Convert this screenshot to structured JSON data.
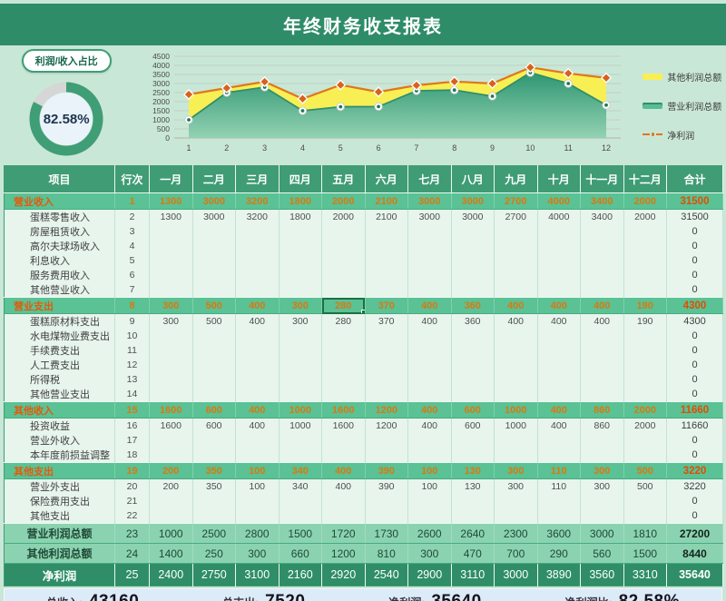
{
  "header": {
    "title": "年终财务收支报表"
  },
  "donut": {
    "label": "利润/收入占比",
    "value_text": "82.58%",
    "percent": 82.58,
    "ring_color": "#3f9e76",
    "track_color": "#d6d6d6",
    "inner_color": "#e9f3f9"
  },
  "chart_data": {
    "type": "area",
    "x": [
      "1",
      "2",
      "3",
      "4",
      "5",
      "6",
      "7",
      "8",
      "9",
      "10",
      "11",
      "12"
    ],
    "ylim": [
      0,
      4500
    ],
    "ytick_step": 500,
    "grid": true,
    "legend_position": "right",
    "series": [
      {
        "name": "营业利润总额",
        "type": "area",
        "color": "#2f8f6b",
        "values": [
          1000,
          2500,
          2800,
          1500,
          1720,
          1730,
          2600,
          2640,
          2300,
          3600,
          3000,
          1810
        ]
      },
      {
        "name": "其他利润总额",
        "type": "area-band",
        "color": "#f8ef55",
        "values": [
          1400,
          250,
          300,
          660,
          1200,
          810,
          300,
          470,
          700,
          290,
          560,
          1500
        ]
      },
      {
        "name": "净利润",
        "type": "line",
        "color": "#e0761c",
        "values": [
          2400,
          2750,
          3100,
          2160,
          2920,
          2540,
          2900,
          3110,
          3000,
          3890,
          3560,
          3310
        ]
      }
    ],
    "legend": [
      {
        "label": "其他利润总额",
        "swatch": "yellow-area"
      },
      {
        "label": "营业利润总额",
        "swatch": "green-area"
      },
      {
        "label": "净利润",
        "swatch": "orange-dashdot"
      }
    ]
  },
  "table": {
    "columns": [
      "项目",
      "行次",
      "一月",
      "二月",
      "三月",
      "四月",
      "五月",
      "六月",
      "七月",
      "八月",
      "九月",
      "十月",
      "十一月",
      "十二月",
      "合计"
    ],
    "selected_cell": {
      "row_no": "8",
      "month_index": 4,
      "value": "280"
    },
    "rows": [
      {
        "label": "营业收入",
        "no": "1",
        "type": "section",
        "values": [
          "1300",
          "3000",
          "3200",
          "1800",
          "2000",
          "2100",
          "3000",
          "3000",
          "2700",
          "4000",
          "3400",
          "2000"
        ],
        "total": "31500"
      },
      {
        "label": "蛋糕零售收入",
        "no": "2",
        "type": "detail",
        "values": [
          "1300",
          "3000",
          "3200",
          "1800",
          "2000",
          "2100",
          "3000",
          "3000",
          "2700",
          "4000",
          "3400",
          "2000"
        ],
        "total": "31500"
      },
      {
        "label": "房屋租赁收入",
        "no": "3",
        "type": "detail",
        "values": [
          "",
          "",
          "",
          "",
          "",
          "",
          "",
          "",
          "",
          "",
          "",
          ""
        ],
        "total": "0"
      },
      {
        "label": "高尔夫球场收入",
        "no": "4",
        "type": "detail",
        "values": [
          "",
          "",
          "",
          "",
          "",
          "",
          "",
          "",
          "",
          "",
          "",
          ""
        ],
        "total": "0"
      },
      {
        "label": "利息收入",
        "no": "5",
        "type": "detail",
        "values": [
          "",
          "",
          "",
          "",
          "",
          "",
          "",
          "",
          "",
          "",
          "",
          ""
        ],
        "total": "0"
      },
      {
        "label": "服务费用收入",
        "no": "6",
        "type": "detail",
        "values": [
          "",
          "",
          "",
          "",
          "",
          "",
          "",
          "",
          "",
          "",
          "",
          ""
        ],
        "total": "0"
      },
      {
        "label": "其他营业收入",
        "no": "7",
        "type": "detail",
        "values": [
          "",
          "",
          "",
          "",
          "",
          "",
          "",
          "",
          "",
          "",
          "",
          ""
        ],
        "total": "0"
      },
      {
        "label": "营业支出",
        "no": "8",
        "type": "section",
        "values": [
          "300",
          "500",
          "400",
          "300",
          "280",
          "370",
          "400",
          "360",
          "400",
          "400",
          "400",
          "190"
        ],
        "total": "4300"
      },
      {
        "label": "蛋糕原材料支出",
        "no": "9",
        "type": "detail",
        "values": [
          "300",
          "500",
          "400",
          "300",
          "280",
          "370",
          "400",
          "360",
          "400",
          "400",
          "400",
          "190"
        ],
        "total": "4300"
      },
      {
        "label": "水电煤物业费支出",
        "no": "10",
        "type": "detail",
        "values": [
          "",
          "",
          "",
          "",
          "",
          "",
          "",
          "",
          "",
          "",
          "",
          ""
        ],
        "total": "0"
      },
      {
        "label": "手续费支出",
        "no": "11",
        "type": "detail",
        "values": [
          "",
          "",
          "",
          "",
          "",
          "",
          "",
          "",
          "",
          "",
          "",
          ""
        ],
        "total": "0"
      },
      {
        "label": "人工费支出",
        "no": "12",
        "type": "detail",
        "values": [
          "",
          "",
          "",
          "",
          "",
          "",
          "",
          "",
          "",
          "",
          "",
          ""
        ],
        "total": "0"
      },
      {
        "label": "所得税",
        "no": "13",
        "type": "detail",
        "values": [
          "",
          "",
          "",
          "",
          "",
          "",
          "",
          "",
          "",
          "",
          "",
          ""
        ],
        "total": "0"
      },
      {
        "label": "其他营业支出",
        "no": "14",
        "type": "detail",
        "values": [
          "",
          "",
          "",
          "",
          "",
          "",
          "",
          "",
          "",
          "",
          "",
          ""
        ],
        "total": "0"
      },
      {
        "label": "其他收入",
        "no": "15",
        "type": "section",
        "values": [
          "1600",
          "600",
          "400",
          "1000",
          "1600",
          "1200",
          "400",
          "600",
          "1000",
          "400",
          "860",
          "2000"
        ],
        "total": "11660"
      },
      {
        "label": "投资收益",
        "no": "16",
        "type": "detail",
        "values": [
          "1600",
          "600",
          "400",
          "1000",
          "1600",
          "1200",
          "400",
          "600",
          "1000",
          "400",
          "860",
          "2000"
        ],
        "total": "11660"
      },
      {
        "label": "营业外收入",
        "no": "17",
        "type": "detail",
        "values": [
          "",
          "",
          "",
          "",
          "",
          "",
          "",
          "",
          "",
          "",
          "",
          ""
        ],
        "total": "0"
      },
      {
        "label": "本年度前损益调整",
        "no": "18",
        "type": "detail",
        "values": [
          "",
          "",
          "",
          "",
          "",
          "",
          "",
          "",
          "",
          "",
          "",
          ""
        ],
        "total": "0"
      },
      {
        "label": "其他支出",
        "no": "19",
        "type": "section",
        "values": [
          "200",
          "350",
          "100",
          "340",
          "400",
          "390",
          "100",
          "130",
          "300",
          "110",
          "300",
          "500"
        ],
        "total": "3220"
      },
      {
        "label": "营业外支出",
        "no": "20",
        "type": "detail",
        "values": [
          "200",
          "350",
          "100",
          "340",
          "400",
          "390",
          "100",
          "130",
          "300",
          "110",
          "300",
          "500"
        ],
        "total": "3220"
      },
      {
        "label": "保险费用支出",
        "no": "21",
        "type": "detail",
        "values": [
          "",
          "",
          "",
          "",
          "",
          "",
          "",
          "",
          "",
          "",
          "",
          ""
        ],
        "total": "0"
      },
      {
        "label": "其他支出",
        "no": "22",
        "type": "detail",
        "values": [
          "",
          "",
          "",
          "",
          "",
          "",
          "",
          "",
          "",
          "",
          "",
          ""
        ],
        "total": "0"
      },
      {
        "label": "营业利润总额",
        "no": "23",
        "type": "subtotal",
        "values": [
          "1000",
          "2500",
          "2800",
          "1500",
          "1720",
          "1730",
          "2600",
          "2640",
          "2300",
          "3600",
          "3000",
          "1810"
        ],
        "total": "27200"
      },
      {
        "label": "其他利润总额",
        "no": "24",
        "type": "subtotal",
        "values": [
          "1400",
          "250",
          "300",
          "660",
          "1200",
          "810",
          "300",
          "470",
          "700",
          "290",
          "560",
          "1500"
        ],
        "total": "8440"
      },
      {
        "label": "净利润",
        "no": "25",
        "type": "net",
        "values": [
          "2400",
          "2750",
          "3100",
          "2160",
          "2920",
          "2540",
          "2900",
          "3110",
          "3000",
          "3890",
          "3560",
          "3310"
        ],
        "total": "35640"
      }
    ]
  },
  "summary": [
    {
      "label": "总收入:",
      "value": "43160"
    },
    {
      "label": "总支出:",
      "value": "7520"
    },
    {
      "label": "净利润:",
      "value": "35640"
    },
    {
      "label": "净利润比:",
      "value": "82.58%"
    }
  ]
}
